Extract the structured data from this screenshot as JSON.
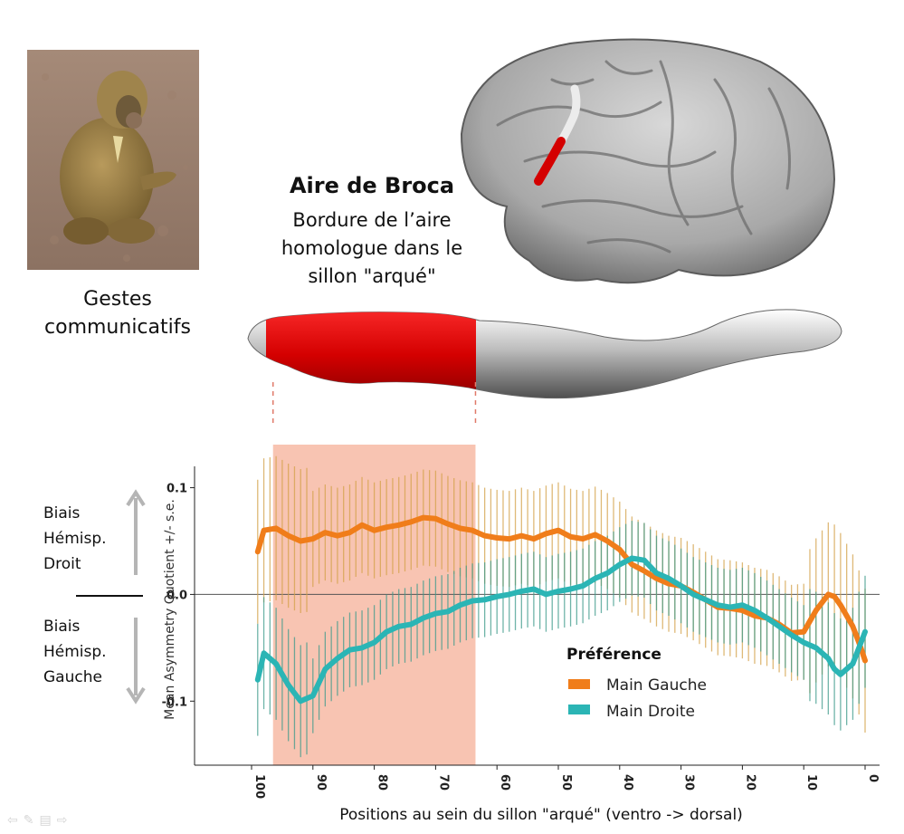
{
  "photo": {
    "subject": "baboon-photo"
  },
  "caption_gestures": {
    "line1": "Gestes",
    "line2": "communicatifs"
  },
  "broca": {
    "title": "Aire de Broca",
    "line1": "Bordure de l’aire",
    "line2": "homologue dans le",
    "line3": "sillon \"arqué\""
  },
  "bias": {
    "right": {
      "line1": "Biais",
      "line2": "Hémisp.",
      "line3": "Droit"
    },
    "left": {
      "line1": "Biais",
      "line2": "Hémisp.",
      "line3": "Gauche"
    }
  },
  "colors": {
    "orange": "#f07d1a",
    "teal": "#2bb5b5",
    "broca_red": "#d40000",
    "highlight": "#f8c4b2",
    "error_orange": "#d4a24a",
    "error_teal": "#3f9b8c"
  },
  "chart_data": {
    "type": "line",
    "xlabel": "Positions au sein du sillon \"arqué\" (ventro -> dorsal)",
    "ylabel": "Mean Asymmetry Quotient +/- s.e.",
    "xlim": [
      100,
      0
    ],
    "ylim": [
      -0.16,
      0.12
    ],
    "x_ticks": [
      100,
      90,
      80,
      70,
      60,
      50,
      40,
      30,
      20,
      10,
      0
    ],
    "y_ticks": [
      0.1,
      0.0,
      -0.1
    ],
    "y_tick_labels": [
      "0.1",
      "0.0",
      "-0.1"
    ],
    "highlight_range": [
      96.5,
      63.5
    ],
    "legend": {
      "title": "Préférence",
      "position": "bottom-right",
      "entries": [
        "Main Gauche",
        "Main Droite"
      ]
    },
    "series": [
      {
        "name": "Main Gauche",
        "color": "#f07d1a",
        "se": 0.045,
        "x": [
          99,
          98,
          96,
          94,
          92,
          90,
          88,
          86,
          84,
          82,
          80,
          78,
          76,
          74,
          72,
          70,
          68,
          66,
          64,
          62,
          60,
          58,
          56,
          54,
          52,
          50,
          48,
          46,
          44,
          42,
          40,
          38,
          36,
          34,
          32,
          30,
          28,
          26,
          24,
          22,
          20,
          18,
          16,
          14,
          12,
          10,
          8,
          6,
          5,
          4,
          2,
          1,
          0
        ],
        "y": [
          0.04,
          0.06,
          0.062,
          0.055,
          0.05,
          0.052,
          0.058,
          0.055,
          0.058,
          0.065,
          0.06,
          0.063,
          0.065,
          0.068,
          0.072,
          0.071,
          0.066,
          0.062,
          0.06,
          0.055,
          0.053,
          0.052,
          0.055,
          0.052,
          0.057,
          0.06,
          0.054,
          0.052,
          0.056,
          0.05,
          0.042,
          0.028,
          0.022,
          0.015,
          0.01,
          0.008,
          0.002,
          -0.005,
          -0.012,
          -0.013,
          -0.015,
          -0.02,
          -0.022,
          -0.028,
          -0.036,
          -0.035,
          -0.015,
          0.0,
          -0.002,
          -0.01,
          -0.03,
          -0.045,
          -0.062
        ]
      },
      {
        "name": "Main Droite",
        "color": "#2bb5b5",
        "se": 0.035,
        "x": [
          99,
          98,
          96,
          94,
          92,
          90,
          88,
          86,
          84,
          82,
          80,
          78,
          76,
          74,
          72,
          70,
          68,
          66,
          64,
          62,
          60,
          58,
          56,
          54,
          52,
          50,
          48,
          46,
          44,
          42,
          40,
          38,
          36,
          34,
          32,
          30,
          28,
          26,
          24,
          22,
          20,
          18,
          16,
          14,
          12,
          10,
          8,
          6,
          5,
          4,
          2,
          1,
          0
        ],
        "y": [
          -0.08,
          -0.055,
          -0.065,
          -0.085,
          -0.1,
          -0.095,
          -0.07,
          -0.06,
          -0.052,
          -0.05,
          -0.045,
          -0.035,
          -0.03,
          -0.028,
          -0.022,
          -0.018,
          -0.016,
          -0.01,
          -0.006,
          -0.005,
          -0.002,
          0.0,
          0.003,
          0.005,
          0.0,
          0.003,
          0.005,
          0.008,
          0.015,
          0.02,
          0.028,
          0.034,
          0.032,
          0.02,
          0.015,
          0.008,
          0.0,
          -0.005,
          -0.01,
          -0.012,
          -0.01,
          -0.015,
          -0.022,
          -0.03,
          -0.038,
          -0.045,
          -0.05,
          -0.06,
          -0.07,
          -0.075,
          -0.065,
          -0.05,
          -0.035
        ]
      }
    ]
  }
}
